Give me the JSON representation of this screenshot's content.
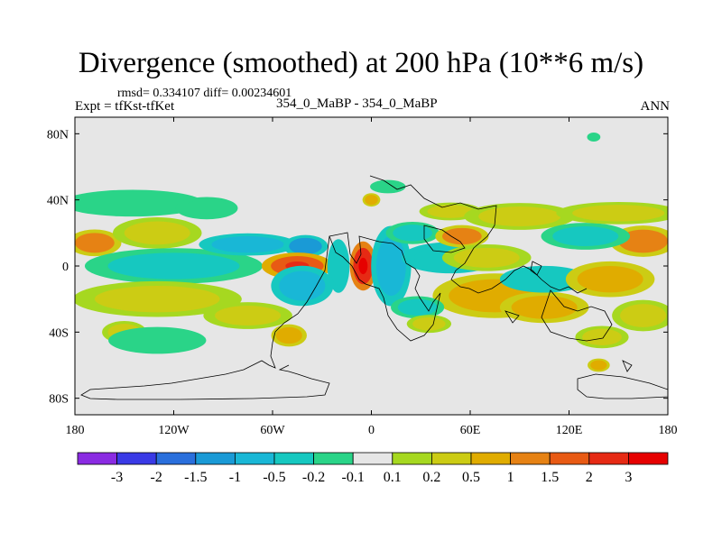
{
  "chart_data": {
    "type": "heatmap",
    "title": "Divergence (smoothed) at 200 hPa (10**6 m/s)",
    "stats": "rmsd= 0.334107 diff= 0.00234601",
    "case_label": "354_0_MaBP - 354_0_MaBP",
    "expt_label": "Expt = tfKst-tfKet",
    "season": "ANN",
    "xlim": [
      -180,
      180
    ],
    "ylim": [
      -90,
      90
    ],
    "x_ticks": [
      {
        "value": -180,
        "label": "180"
      },
      {
        "value": -120,
        "label": "120W"
      },
      {
        "value": -60,
        "label": "60W"
      },
      {
        "value": 0,
        "label": "0"
      },
      {
        "value": 60,
        "label": "60E"
      },
      {
        "value": 120,
        "label": "120E"
      },
      {
        "value": 180,
        "label": "180"
      }
    ],
    "y_ticks": [
      {
        "value": 80,
        "label": "80N"
      },
      {
        "value": 40,
        "label": "40N"
      },
      {
        "value": 0,
        "label": "0"
      },
      {
        "value": -40,
        "label": "40S"
      },
      {
        "value": -80,
        "label": "80S"
      }
    ],
    "colorbar": {
      "levels": [
        -3,
        -2,
        -1.5,
        -1,
        -0.5,
        -0.2,
        -0.1,
        0.1,
        0.2,
        0.5,
        1,
        1.5,
        2,
        3
      ],
      "labels": [
        "-3",
        "-2",
        "-1.5",
        "-1",
        "-0.5",
        "-0.2",
        "-0.1",
        "0.1",
        "0.2",
        "0.5",
        "1",
        "1.5",
        "2",
        "3"
      ],
      "colors": [
        "#8a2be2",
        "#3a3ae6",
        "#2a6fdc",
        "#1a9ad6",
        "#19b7d6",
        "#16c8c0",
        "#2ad488",
        "#e6e6e6",
        "#a6d820",
        "#cccc14",
        "#e0ac00",
        "#e68214",
        "#e85a14",
        "#e62a14",
        "#e60000"
      ]
    },
    "features": [
      {
        "kind": "cell",
        "lon": -168,
        "lat": 14,
        "rx": 12,
        "ry": 6,
        "value": 1.0
      },
      {
        "kind": "cell",
        "lon": -130,
        "lat": 20,
        "rx": 20,
        "ry": 7,
        "value": 0.3
      },
      {
        "kind": "cell",
        "lon": -120,
        "lat": 0,
        "rx": 40,
        "ry": 8,
        "value": -0.3
      },
      {
        "kind": "cell",
        "lon": -145,
        "lat": 38,
        "rx": 32,
        "ry": 6,
        "value": -0.15
      },
      {
        "kind": "cell",
        "lon": -100,
        "lat": 35,
        "rx": 14,
        "ry": 5,
        "value": -0.15
      },
      {
        "kind": "cell",
        "lon": -130,
        "lat": -20,
        "rx": 38,
        "ry": 8,
        "value": 0.3
      },
      {
        "kind": "cell",
        "lon": -150,
        "lat": -40,
        "rx": 10,
        "ry": 5,
        "value": 0.2
      },
      {
        "kind": "cell",
        "lon": -130,
        "lat": -45,
        "rx": 22,
        "ry": 6,
        "value": -0.15
      },
      {
        "kind": "cell",
        "lon": -75,
        "lat": 13,
        "rx": 22,
        "ry": 5,
        "value": -0.6
      },
      {
        "kind": "cell",
        "lon": -40,
        "lat": 12,
        "rx": 10,
        "ry": 5,
        "value": -1.1
      },
      {
        "kind": "cell",
        "lon": -45,
        "lat": 0,
        "rx": 16,
        "ry": 6,
        "value": 1.7
      },
      {
        "kind": "cell",
        "lon": -42,
        "lat": -12,
        "rx": 14,
        "ry": 9,
        "value": -0.6
      },
      {
        "kind": "cell",
        "lon": -75,
        "lat": -30,
        "rx": 20,
        "ry": 6,
        "value": 0.25
      },
      {
        "kind": "cell",
        "lon": -50,
        "lat": -42,
        "rx": 8,
        "ry": 5,
        "value": 0.6
      },
      {
        "kind": "cell",
        "lon": -5,
        "lat": 0,
        "rx": 6,
        "ry": 11,
        "value": 2.5
      },
      {
        "kind": "cell",
        "lon": 12,
        "lat": 0,
        "rx": 9,
        "ry": 18,
        "value": -0.7
      },
      {
        "kind": "cell",
        "lon": -20,
        "lat": 0,
        "rx": 5,
        "ry": 12,
        "value": -0.5
      },
      {
        "kind": "cell",
        "lon": 0,
        "lat": 40,
        "rx": 4,
        "ry": 3,
        "value": 0.6
      },
      {
        "kind": "cell",
        "lon": 10,
        "lat": 48,
        "rx": 8,
        "ry": 3,
        "value": -0.2
      },
      {
        "kind": "cell",
        "lon": 48,
        "lat": 33,
        "rx": 14,
        "ry": 4,
        "value": 0.3
      },
      {
        "kind": "cell",
        "lon": 25,
        "lat": 20,
        "rx": 12,
        "ry": 5,
        "value": -0.3
      },
      {
        "kind": "cell",
        "lon": 48,
        "lat": 5,
        "rx": 22,
        "ry": 7,
        "value": -0.5
      },
      {
        "kind": "cell",
        "lon": 55,
        "lat": 18,
        "rx": 12,
        "ry": 5,
        "value": 1.1
      },
      {
        "kind": "cell",
        "lon": 90,
        "lat": 30,
        "rx": 25,
        "ry": 6,
        "value": 0.3
      },
      {
        "kind": "cell",
        "lon": 70,
        "lat": 5,
        "rx": 20,
        "ry": 6,
        "value": 0.25
      },
      {
        "kind": "cell",
        "lon": 75,
        "lat": -18,
        "rx": 28,
        "ry": 10,
        "value": 0.9
      },
      {
        "kind": "cell",
        "lon": 105,
        "lat": -25,
        "rx": 20,
        "ry": 7,
        "value": 0.7
      },
      {
        "kind": "cell",
        "lon": 105,
        "lat": -8,
        "rx": 20,
        "ry": 6,
        "value": -0.5
      },
      {
        "kind": "cell",
        "lon": 145,
        "lat": -8,
        "rx": 20,
        "ry": 8,
        "value": 0.6
      },
      {
        "kind": "cell",
        "lon": 165,
        "lat": 15,
        "rx": 15,
        "ry": 7,
        "value": 1.1
      },
      {
        "kind": "cell",
        "lon": 130,
        "lat": 18,
        "rx": 20,
        "ry": 6,
        "value": -0.3
      },
      {
        "kind": "cell",
        "lon": 150,
        "lat": 32,
        "rx": 28,
        "ry": 5,
        "value": 0.2
      },
      {
        "kind": "cell",
        "lon": 165,
        "lat": -30,
        "rx": 14,
        "ry": 7,
        "value": 0.3
      },
      {
        "kind": "cell",
        "lon": 140,
        "lat": -43,
        "rx": 12,
        "ry": 5,
        "value": 0.2
      },
      {
        "kind": "cell",
        "lon": 28,
        "lat": -25,
        "rx": 12,
        "ry": 5,
        "value": -0.3
      },
      {
        "kind": "cell",
        "lon": 35,
        "lat": -35,
        "rx": 10,
        "ry": 4,
        "value": 0.2
      },
      {
        "kind": "cell",
        "lon": 138,
        "lat": -60,
        "rx": 5,
        "ry": 3,
        "value": 0.6
      },
      {
        "kind": "cell",
        "lon": 135,
        "lat": 78,
        "rx": 3,
        "ry": 2,
        "value": -0.2
      }
    ]
  }
}
